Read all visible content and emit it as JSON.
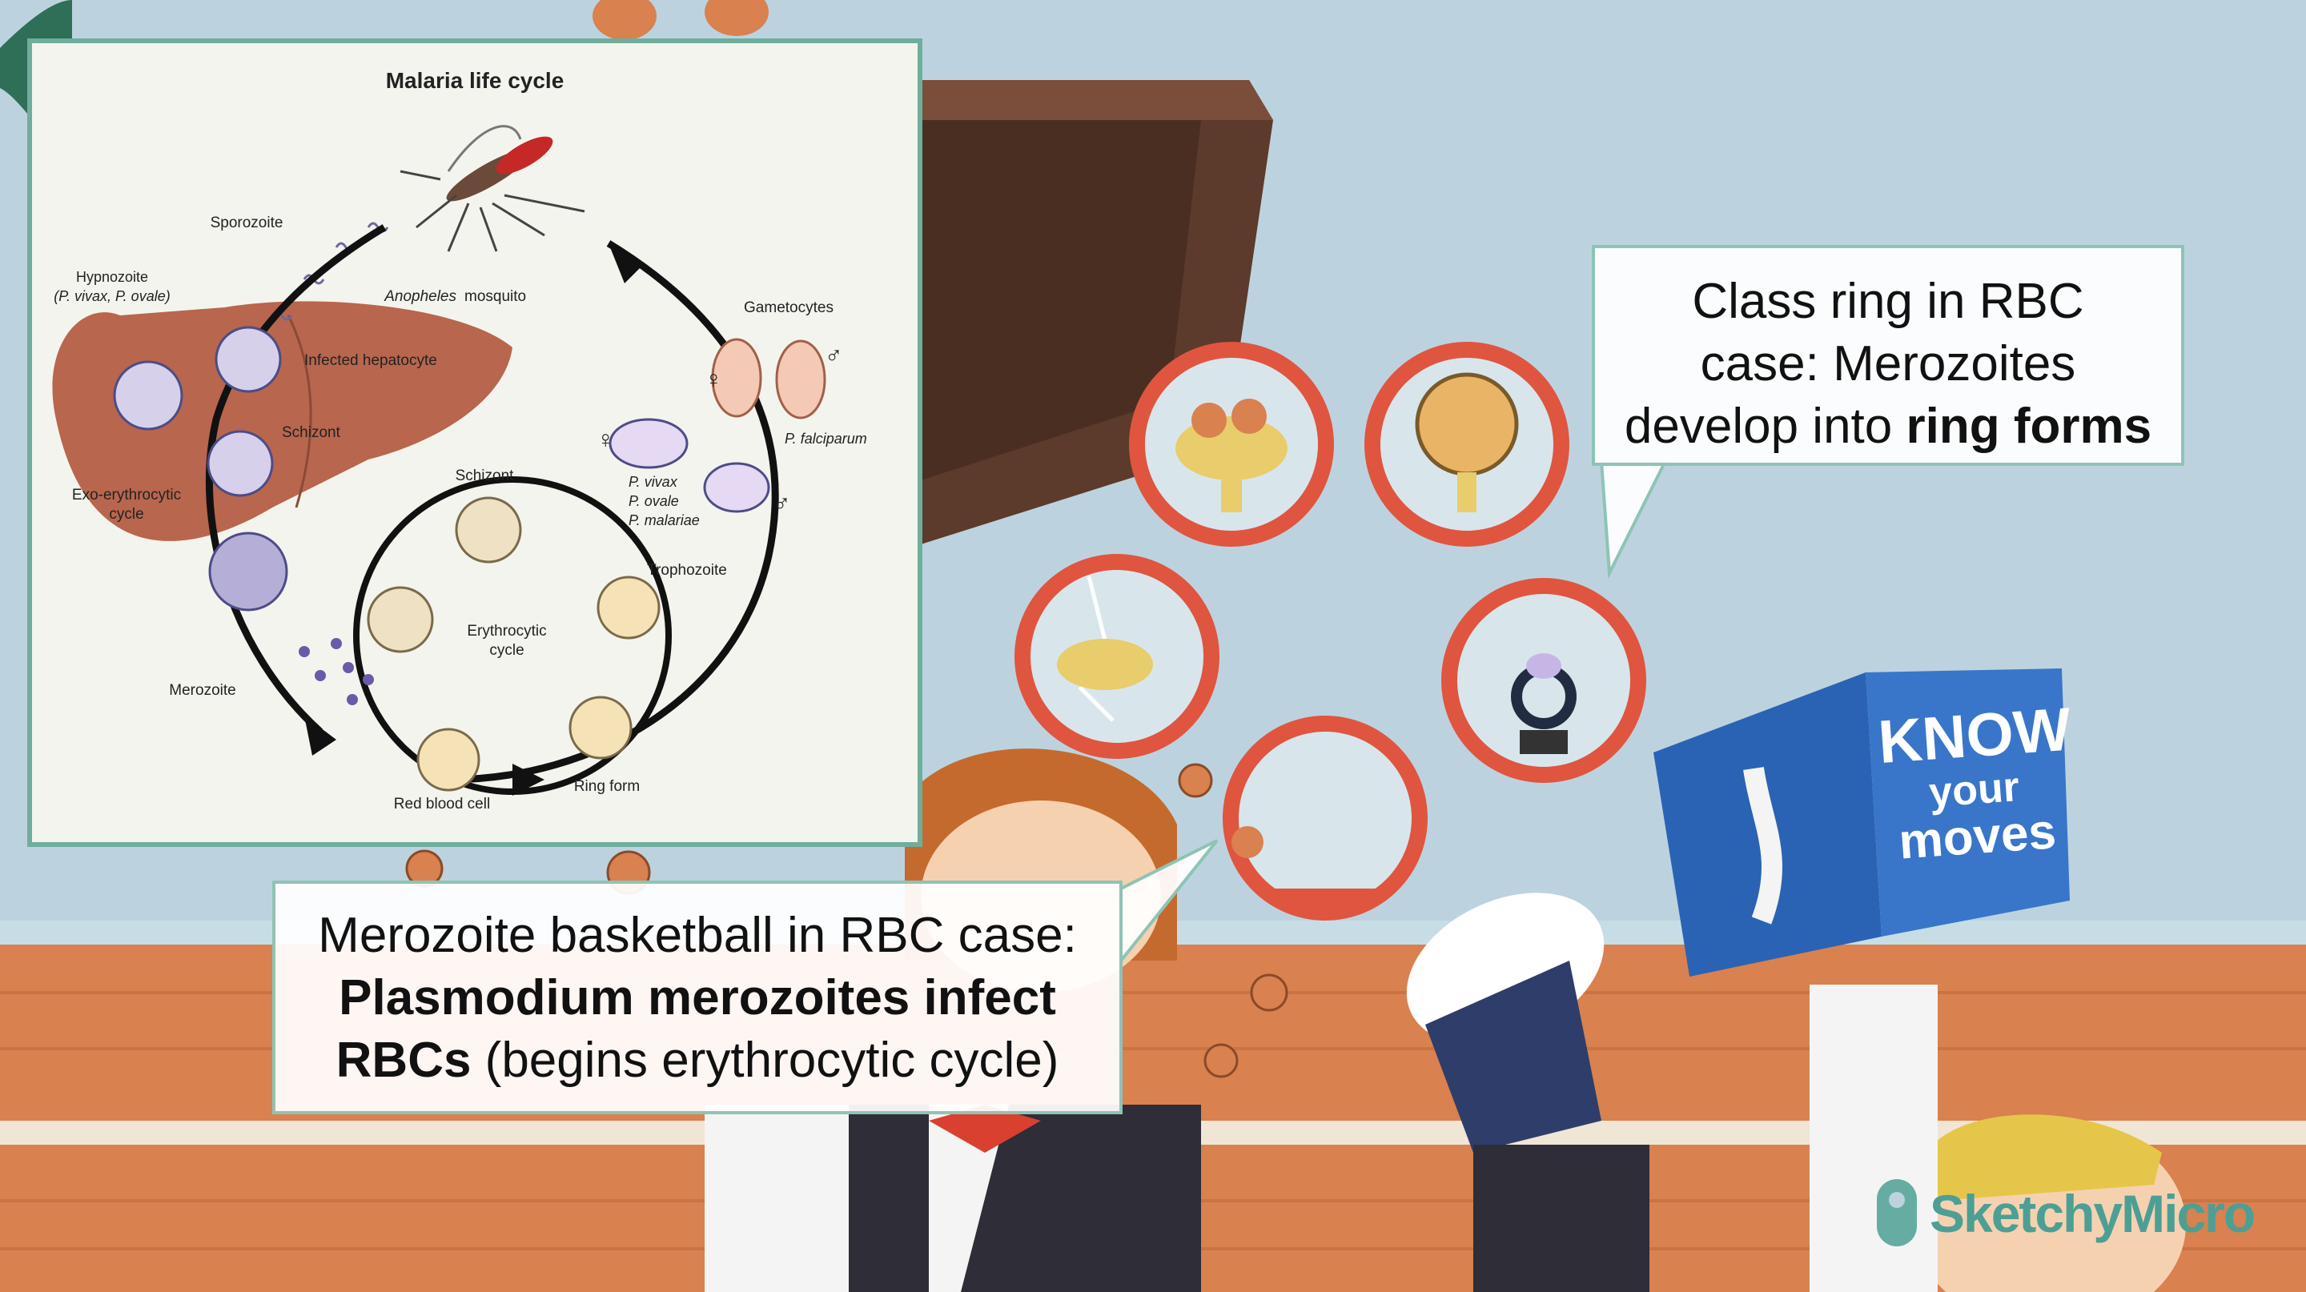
{
  "diagram": {
    "title": "Malaria life cycle",
    "labels": {
      "sporozoite": "Sporozoite",
      "hypnozoite": "Hypnozoite",
      "hypnozoite_species": "(P. vivax, P. ovale)",
      "anopheles": "Anopheles",
      "mosquito": "mosquito",
      "gametocytes": "Gametocytes",
      "infected_hepatocyte": "Infected hepatocyte",
      "schizont_liver": "Schizont",
      "exo_line1": "Exo-erythrocytic",
      "exo_line2": "cycle",
      "schizont_blood": "Schizont",
      "p_vivax": "P. vivax",
      "p_ovale": "P. ovale",
      "p_malariae": "P. malariae",
      "p_falciparum": "P. falciparum",
      "trophozoite": "Trophozoite",
      "ery_line1": "Erythrocytic",
      "ery_line2": "cycle",
      "merozoite": "Merozoite",
      "red_blood_cell": "Red blood cell",
      "ring_form": "Ring form",
      "female": "♀",
      "male": "♂"
    }
  },
  "callouts": {
    "top": {
      "line1": "Class ring in RBC",
      "line2": "case: Merozoites",
      "line3_plain": "develop into ",
      "line3_bold": "ring forms"
    },
    "bottom": {
      "line1": "Merozoite basketball in RBC case:",
      "line2_bold": "Plasmodium merozoites infect",
      "line3_bold": "RBCs",
      "line3_plain": " (begins erythrocytic cycle)"
    }
  },
  "book": {
    "line1": "KNOW",
    "line2": "your",
    "line3": "moves"
  },
  "logo": {
    "text": "SketchyMicro"
  },
  "colors": {
    "accent": "#6fae9c",
    "wall": "#bcd3df",
    "floor": "#d9814f",
    "case_ring": "#e0553f"
  }
}
